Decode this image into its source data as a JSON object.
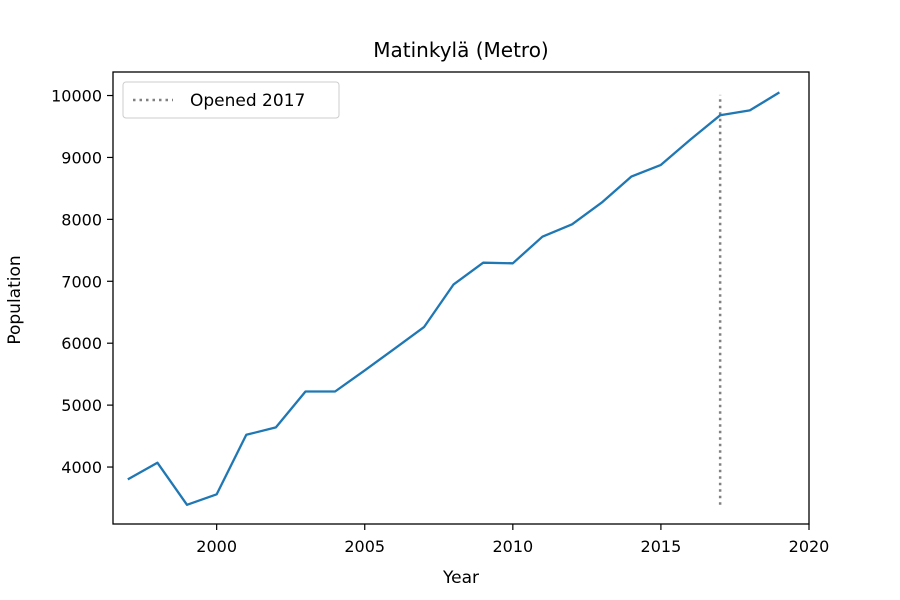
{
  "chart_data": {
    "type": "line",
    "title": "Matinkylä (Metro)",
    "xlabel": "Year",
    "ylabel": "Population",
    "xlim": [
      1996.5,
      2020.0
    ],
    "ylim": [
      3080,
      10380
    ],
    "xticks": [
      2000,
      2005,
      2010,
      2015,
      2020
    ],
    "yticks": [
      4000,
      5000,
      6000,
      7000,
      8000,
      9000,
      10000
    ],
    "grid": false,
    "legend_position": "top-left",
    "series": [
      {
        "color": "#1f77b4",
        "x": [
          1997,
          1998,
          1999,
          2000,
          2001,
          2002,
          2003,
          2004,
          2005,
          2006,
          2007,
          2008,
          2009,
          2010,
          2011,
          2012,
          2013,
          2014,
          2015,
          2016,
          2017,
          2018,
          2019
        ],
        "y": [
          3800,
          4070,
          3390,
          3560,
          4520,
          4640,
          5220,
          5220,
          5560,
          5910,
          6260,
          6950,
          7300,
          7290,
          7720,
          7920,
          8270,
          8690,
          8880,
          9290,
          9680,
          9760,
          10050
        ]
      }
    ],
    "annotations": [
      {
        "type": "vline",
        "x": 2017,
        "y_range": [
          3390,
          10010
        ],
        "style": "dotted",
        "color": "#808080",
        "label": "Opened 2017"
      }
    ]
  }
}
